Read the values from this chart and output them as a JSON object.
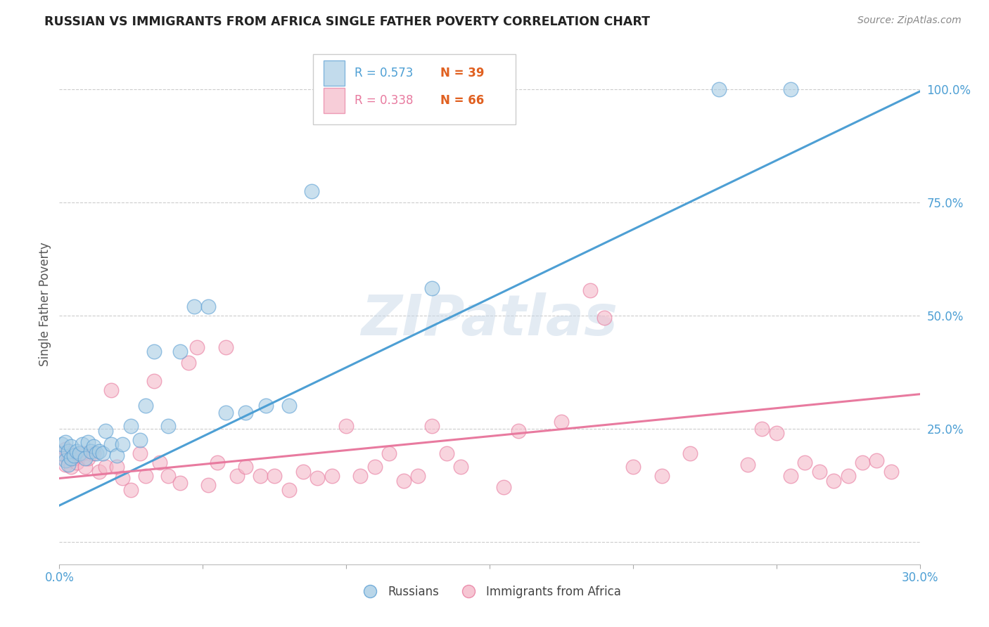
{
  "title": "RUSSIAN VS IMMIGRANTS FROM AFRICA SINGLE FATHER POVERTY CORRELATION CHART",
  "source": "Source: ZipAtlas.com",
  "ylabel": "Single Father Poverty",
  "xlim": [
    0.0,
    0.3
  ],
  "ylim": [
    -0.05,
    1.1
  ],
  "xticks": [
    0.0,
    0.05,
    0.1,
    0.15,
    0.2,
    0.25,
    0.3
  ],
  "xticklabels": [
    "0.0%",
    "",
    "",
    "",
    "",
    "",
    "30.0%"
  ],
  "yticks_right": [
    0.0,
    0.25,
    0.5,
    0.75,
    1.0
  ],
  "yticklabels_right": [
    "",
    "25.0%",
    "50.0%",
    "75.0%",
    "100.0%"
  ],
  "blue_fill": "#a8cce4",
  "blue_edge": "#5b9fd4",
  "pink_fill": "#f4b8c8",
  "pink_edge": "#e87a9f",
  "blue_line_color": "#4d9fd4",
  "pink_line_color": "#e87a9f",
  "legend_R_color": "#4d9fd4",
  "legend_N_color": "#e06020",
  "watermark": "ZIPatlas",
  "blue_line_intercept": 0.08,
  "blue_line_slope": 3.05,
  "pink_line_intercept": 0.14,
  "pink_line_slope": 0.62,
  "blue_scatter_x": [
    0.001,
    0.001,
    0.002,
    0.002,
    0.003,
    0.003,
    0.004,
    0.004,
    0.005,
    0.006,
    0.007,
    0.008,
    0.009,
    0.01,
    0.011,
    0.012,
    0.013,
    0.014,
    0.015,
    0.016,
    0.018,
    0.02,
    0.022,
    0.025,
    0.028,
    0.03,
    0.033,
    0.038,
    0.042,
    0.047,
    0.052,
    0.058,
    0.065,
    0.072,
    0.08,
    0.088,
    0.13,
    0.23,
    0.255
  ],
  "blue_scatter_y": [
    0.195,
    0.215,
    0.18,
    0.22,
    0.17,
    0.2,
    0.185,
    0.21,
    0.19,
    0.2,
    0.195,
    0.215,
    0.185,
    0.22,
    0.2,
    0.21,
    0.195,
    0.2,
    0.195,
    0.245,
    0.215,
    0.19,
    0.215,
    0.255,
    0.225,
    0.3,
    0.42,
    0.255,
    0.42,
    0.52,
    0.52,
    0.285,
    0.285,
    0.3,
    0.3,
    0.775,
    0.56,
    1.0,
    1.0
  ],
  "pink_scatter_x": [
    0.001,
    0.002,
    0.002,
    0.003,
    0.003,
    0.004,
    0.005,
    0.006,
    0.007,
    0.008,
    0.009,
    0.01,
    0.012,
    0.014,
    0.016,
    0.018,
    0.02,
    0.022,
    0.025,
    0.028,
    0.03,
    0.033,
    0.035,
    0.038,
    0.042,
    0.045,
    0.048,
    0.052,
    0.055,
    0.058,
    0.062,
    0.065,
    0.07,
    0.075,
    0.08,
    0.085,
    0.09,
    0.095,
    0.1,
    0.105,
    0.11,
    0.115,
    0.12,
    0.125,
    0.13,
    0.135,
    0.14,
    0.155,
    0.16,
    0.175,
    0.185,
    0.19,
    0.2,
    0.21,
    0.22,
    0.24,
    0.245,
    0.25,
    0.255,
    0.26,
    0.265,
    0.27,
    0.275,
    0.28,
    0.285,
    0.29
  ],
  "pink_scatter_y": [
    0.195,
    0.17,
    0.205,
    0.18,
    0.195,
    0.165,
    0.185,
    0.175,
    0.19,
    0.195,
    0.165,
    0.185,
    0.195,
    0.155,
    0.165,
    0.335,
    0.165,
    0.14,
    0.115,
    0.195,
    0.145,
    0.355,
    0.175,
    0.145,
    0.13,
    0.395,
    0.43,
    0.125,
    0.175,
    0.43,
    0.145,
    0.165,
    0.145,
    0.145,
    0.115,
    0.155,
    0.14,
    0.145,
    0.255,
    0.145,
    0.165,
    0.195,
    0.135,
    0.145,
    0.255,
    0.195,
    0.165,
    0.12,
    0.245,
    0.265,
    0.555,
    0.495,
    0.165,
    0.145,
    0.195,
    0.17,
    0.25,
    0.24,
    0.145,
    0.175,
    0.155,
    0.135,
    0.145,
    0.175,
    0.18,
    0.155
  ]
}
